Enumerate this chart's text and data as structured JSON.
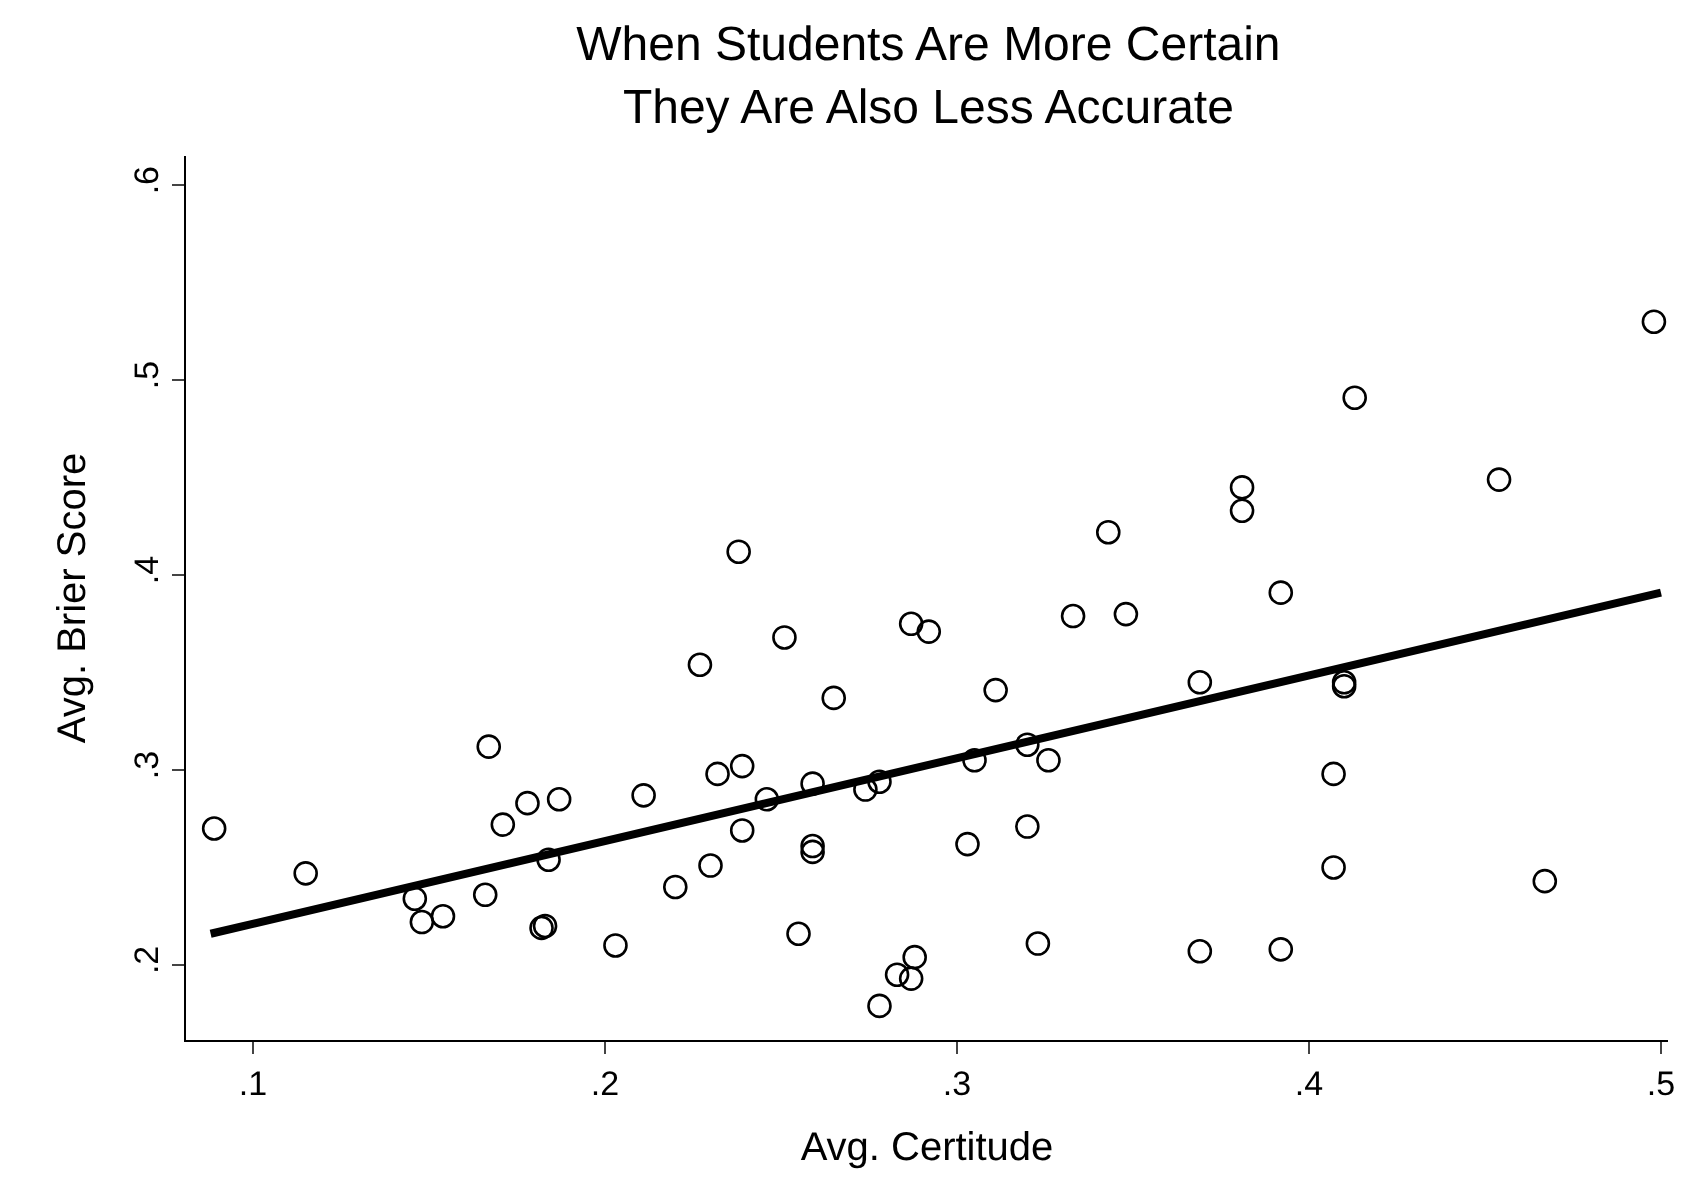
{
  "chart_data": {
    "type": "scatter",
    "title": "When Students Are More Certain\nThey Are Also Less Accurate",
    "xlabel": "Avg. Certitude",
    "ylabel": "Avg. Brier Score",
    "xlim": [
      0.081,
      0.502
    ],
    "ylim": [
      0.1615,
      0.615
    ],
    "xticks": [
      {
        "value": 0.1,
        "label": ".1"
      },
      {
        "value": 0.2,
        "label": ".2"
      },
      {
        "value": 0.3,
        "label": ".3"
      },
      {
        "value": 0.4,
        "label": ".4"
      },
      {
        "value": 0.5,
        "label": ".5"
      }
    ],
    "yticks": [
      {
        "value": 0.2,
        "label": ".2"
      },
      {
        "value": 0.3,
        "label": ".3"
      },
      {
        "value": 0.4,
        "label": ".4"
      },
      {
        "value": 0.5,
        "label": ".5"
      },
      {
        "value": 0.6,
        "label": ".6"
      }
    ],
    "series": [
      {
        "marker": "circle",
        "color": "#000000",
        "x": [
          0.089,
          0.115,
          0.146,
          0.148,
          0.154,
          0.166,
          0.167,
          0.171,
          0.178,
          0.182,
          0.183,
          0.184,
          0.187,
          0.203,
          0.211,
          0.22,
          0.227,
          0.23,
          0.232,
          0.238,
          0.239,
          0.239,
          0.246,
          0.251,
          0.255,
          0.259,
          0.259,
          0.259,
          0.265,
          0.274,
          0.278,
          0.278,
          0.283,
          0.287,
          0.288,
          0.287,
          0.292,
          0.303,
          0.305,
          0.311,
          0.32,
          0.32,
          0.323,
          0.326,
          0.333,
          0.343,
          0.348,
          0.369,
          0.369,
          0.381,
          0.381,
          0.392,
          0.392,
          0.407,
          0.407,
          0.41,
          0.41,
          0.413,
          0.454,
          0.467,
          0.498
        ],
        "values": [
          0.27,
          0.247,
          0.234,
          0.222,
          0.225,
          0.236,
          0.312,
          0.272,
          0.283,
          0.219,
          0.22,
          0.254,
          0.285,
          0.21,
          0.287,
          0.24,
          0.354,
          0.251,
          0.298,
          0.412,
          0.302,
          0.269,
          0.285,
          0.368,
          0.216,
          0.261,
          0.258,
          0.293,
          0.337,
          0.29,
          0.294,
          0.179,
          0.195,
          0.193,
          0.204,
          0.375,
          0.371,
          0.262,
          0.305,
          0.341,
          0.313,
          0.271,
          0.211,
          0.305,
          0.379,
          0.422,
          0.38,
          0.345,
          0.207,
          0.433,
          0.445,
          0.391,
          0.208,
          0.298,
          0.25,
          0.343,
          0.345,
          0.491,
          0.449,
          0.243,
          0.53
        ]
      },
      {
        "type": "line",
        "marker": "none",
        "color": "#000000",
        "x": [
          0.088,
          0.5
        ],
        "values": [
          0.216,
          0.391
        ]
      }
    ]
  }
}
